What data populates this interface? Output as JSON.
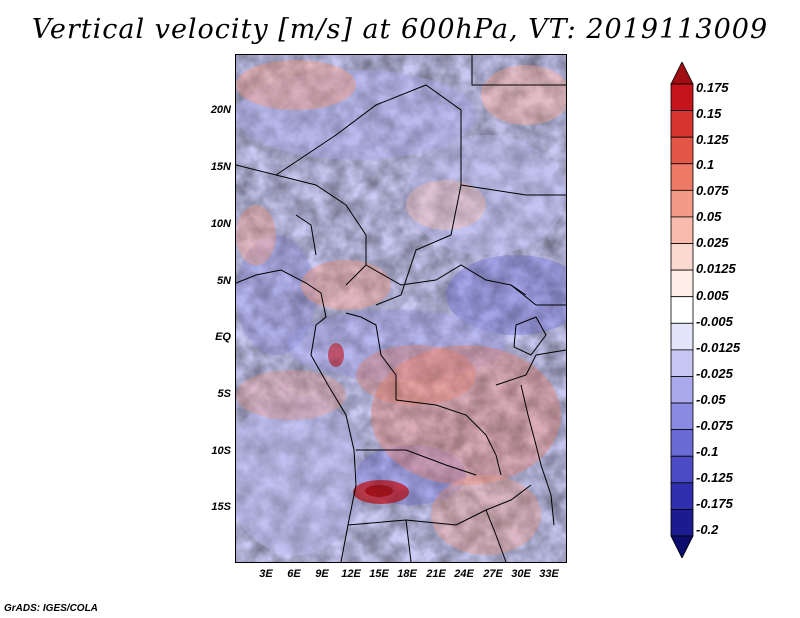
{
  "title": "Vertical velocity [m/s] at 600hPa, VT: 2019113009",
  "credit": "GrADS: IGES/COLA",
  "chart_data": {
    "type": "heatmap",
    "title": "Vertical velocity [m/s] at 600hPa, VT: 2019113009",
    "variable": "Vertical velocity",
    "units": "m/s",
    "level": "600hPa",
    "valid_time": "2019113009",
    "lon_range": [
      0,
      35
    ],
    "lat_range": [
      -20,
      25
    ],
    "y_ticks": [
      {
        "label": "20N",
        "lat": 20
      },
      {
        "label": "15N",
        "lat": 15
      },
      {
        "label": "10N",
        "lat": 10
      },
      {
        "label": "5N",
        "lat": 5
      },
      {
        "label": "EQ",
        "lat": 0
      },
      {
        "label": "5S",
        "lat": -5
      },
      {
        "label": "10S",
        "lat": -10
      },
      {
        "label": "15S",
        "lat": -15
      }
    ],
    "x_ticks": [
      {
        "label": "3E",
        "lon": 3
      },
      {
        "label": "6E",
        "lon": 6
      },
      {
        "label": "9E",
        "lon": 9
      },
      {
        "label": "12E",
        "lon": 12
      },
      {
        "label": "15E",
        "lon": 15
      },
      {
        "label": "18E",
        "lon": 18
      },
      {
        "label": "21E",
        "lon": 21
      },
      {
        "label": "24E",
        "lon": 24
      },
      {
        "label": "27E",
        "lon": 27
      },
      {
        "label": "30E",
        "lon": 30
      },
      {
        "label": "33E",
        "lon": 33
      }
    ],
    "colorbar": {
      "levels": [
        "0.175",
        "0.15",
        "0.125",
        "0.1",
        "0.075",
        "0.05",
        "0.025",
        "0.0125",
        "0.005",
        "-0.005",
        "-0.0125",
        "-0.025",
        "-0.05",
        "-0.075",
        "-0.1",
        "-0.125",
        "-0.175",
        "-0.2"
      ],
      "colors": [
        "#a00e14",
        "#c4141c",
        "#d8342f",
        "#e45646",
        "#ed7a66",
        "#f49b88",
        "#f8bbad",
        "#fbd8cf",
        "#fdeeea",
        "#ffffff",
        "#e4e4fa",
        "#c7c7f4",
        "#a9a9ec",
        "#8a8ae2",
        "#6b6bd6",
        "#4b4bc6",
        "#2f2fae",
        "#1c1c90",
        "#0c0c6a"
      ]
    }
  }
}
